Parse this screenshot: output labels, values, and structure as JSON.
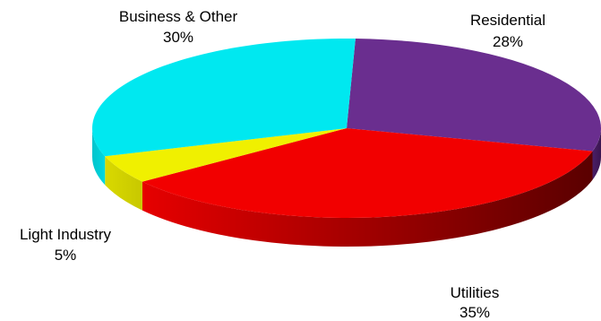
{
  "chart_data": {
    "type": "pie",
    "style": "3d-pie",
    "title": "",
    "slices": [
      {
        "name": "Residential",
        "value": 28,
        "label": "28%",
        "color": "#6A2E8F"
      },
      {
        "name": "Utilities",
        "value": 35,
        "label": "35%",
        "color": "#F20000"
      },
      {
        "name": "Light Industry",
        "value": 5,
        "label": "5%",
        "color": "#F0F000"
      },
      {
        "name": "Business & Other",
        "value": 30,
        "label": "30%",
        "color": "#00E8F0"
      }
    ],
    "legend": "none"
  }
}
